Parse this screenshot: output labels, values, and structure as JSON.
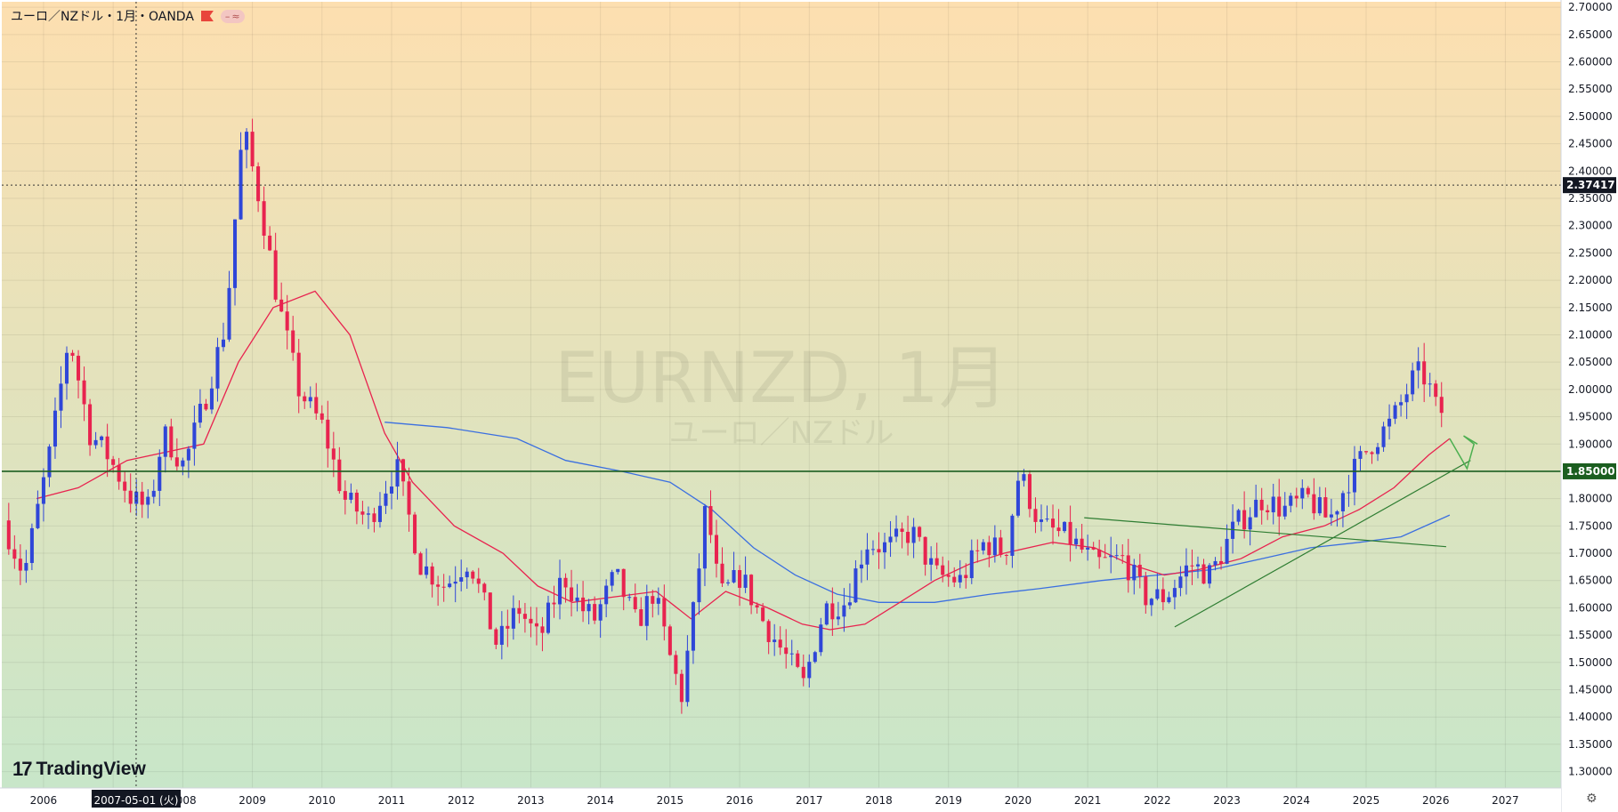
{
  "legend": {
    "title": "ユーロ／NZドル・1月・OANDA",
    "flag_icon": "flag-icon",
    "pill_minus": "–",
    "pill_wave": "≈"
  },
  "watermark": {
    "line1": "EURNZD, 1月",
    "line2": "ユーロ／NZドル"
  },
  "branding": {
    "mark": "17",
    "name": "TradingView"
  },
  "crosshair": {
    "date_label": "2007-05-01 (火)",
    "price_label": "2.37417"
  },
  "colors": {
    "bg_top": "#fddfb0",
    "bg_bottom": "#c8e6c9",
    "up": "#2f46d8",
    "down": "#e8234f",
    "ma_fast": "#e8234f",
    "ma_slow": "#3b6fe0",
    "trend": "#2e7d32",
    "hline": "#1b5e20",
    "arrow": "#4caf50"
  },
  "chart_data": {
    "type": "candlestick",
    "symbol": "EURNZD",
    "interval": "1月",
    "x_axis": {
      "ticks": [
        "2006",
        "2007",
        "2008",
        "2009",
        "2010",
        "2011",
        "2012",
        "2013",
        "2014",
        "2015",
        "2016",
        "2017",
        "2018",
        "2019",
        "2020",
        "2021",
        "2022",
        "2023",
        "2024",
        "2025",
        "2026",
        "2027"
      ],
      "range": [
        2005.4,
        2027.8
      ]
    },
    "y_axis": {
      "range": [
        1.27,
        2.71
      ],
      "ticks": [
        "1.30000",
        "1.35000",
        "1.40000",
        "1.45000",
        "1.50000",
        "1.55000",
        "1.60000",
        "1.65000",
        "1.70000",
        "1.75000",
        "1.80000",
        "1.85000",
        "1.90000",
        "1.95000",
        "2.00000",
        "2.05000",
        "2.10000",
        "2.15000",
        "2.20000",
        "2.25000",
        "2.30000",
        "2.35000",
        "2.40000",
        "2.45000",
        "2.50000",
        "2.55000",
        "2.60000",
        "2.65000",
        "2.70000"
      ]
    },
    "horizontal_line": {
      "price": 1.85,
      "label": "1.85000"
    },
    "crosshair_price": 2.37417,
    "anchors": [
      [
        2005.5,
        1.76
      ],
      [
        2005.8,
        1.66
      ],
      [
        2006.2,
        1.9
      ],
      [
        2006.45,
        2.1
      ],
      [
        2006.75,
        1.92
      ],
      [
        2007.0,
        1.88
      ],
      [
        2007.35,
        1.8
      ],
      [
        2007.6,
        1.78
      ],
      [
        2007.8,
        1.92
      ],
      [
        2008.1,
        1.86
      ],
      [
        2008.4,
        1.98
      ],
      [
        2008.7,
        2.12
      ],
      [
        2008.95,
        2.48
      ],
      [
        2009.2,
        2.34
      ],
      [
        2009.45,
        2.16
      ],
      [
        2009.75,
        2.0
      ],
      [
        2010.1,
        1.93
      ],
      [
        2010.4,
        1.8
      ],
      [
        2010.75,
        1.76
      ],
      [
        2011.15,
        1.86
      ],
      [
        2011.5,
        1.68
      ],
      [
        2011.85,
        1.64
      ],
      [
        2012.2,
        1.69
      ],
      [
        2012.6,
        1.53
      ],
      [
        2012.9,
        1.6
      ],
      [
        2013.2,
        1.54
      ],
      [
        2013.55,
        1.66
      ],
      [
        2013.8,
        1.6
      ],
      [
        2014.0,
        1.58
      ],
      [
        2014.3,
        1.66
      ],
      [
        2014.6,
        1.57
      ],
      [
        2014.85,
        1.63
      ],
      [
        2015.1,
        1.5
      ],
      [
        2015.25,
        1.44
      ],
      [
        2015.45,
        1.62
      ],
      [
        2015.6,
        1.79
      ],
      [
        2015.8,
        1.62
      ],
      [
        2016.1,
        1.66
      ],
      [
        2016.4,
        1.58
      ],
      [
        2016.7,
        1.52
      ],
      [
        2017.0,
        1.46
      ],
      [
        2017.3,
        1.6
      ],
      [
        2017.6,
        1.61
      ],
      [
        2017.9,
        1.72
      ],
      [
        2018.2,
        1.71
      ],
      [
        2018.55,
        1.74
      ],
      [
        2018.9,
        1.66
      ],
      [
        2019.25,
        1.65
      ],
      [
        2019.6,
        1.72
      ],
      [
        2019.9,
        1.7
      ],
      [
        2020.1,
        1.85
      ],
      [
        2020.4,
        1.75
      ],
      [
        2020.8,
        1.73
      ],
      [
        2021.2,
        1.68
      ],
      [
        2021.6,
        1.69
      ],
      [
        2021.9,
        1.62
      ],
      [
        2022.2,
        1.62
      ],
      [
        2022.55,
        1.68
      ],
      [
        2022.85,
        1.66
      ],
      [
        2023.2,
        1.75
      ],
      [
        2023.6,
        1.8
      ],
      [
        2023.9,
        1.78
      ],
      [
        2024.25,
        1.8
      ],
      [
        2024.55,
        1.76
      ],
      [
        2024.85,
        1.84
      ],
      [
        2025.15,
        1.9
      ],
      [
        2025.45,
        1.94
      ],
      [
        2025.8,
        2.03
      ],
      [
        2025.95,
        2.02
      ],
      [
        2026.1,
        1.96
      ]
    ],
    "ma_fast_anchors": [
      [
        2005.9,
        1.8
      ],
      [
        2006.5,
        1.82
      ],
      [
        2007.2,
        1.87
      ],
      [
        2008.3,
        1.9
      ],
      [
        2008.8,
        2.05
      ],
      [
        2009.3,
        2.15
      ],
      [
        2009.9,
        2.18
      ],
      [
        2010.4,
        2.1
      ],
      [
        2010.9,
        1.92
      ],
      [
        2011.3,
        1.83
      ],
      [
        2011.9,
        1.75
      ],
      [
        2012.6,
        1.7
      ],
      [
        2013.1,
        1.64
      ],
      [
        2013.6,
        1.61
      ],
      [
        2014.2,
        1.62
      ],
      [
        2014.8,
        1.63
      ],
      [
        2015.3,
        1.58
      ],
      [
        2015.8,
        1.63
      ],
      [
        2016.4,
        1.6
      ],
      [
        2016.9,
        1.57
      ],
      [
        2017.3,
        1.56
      ],
      [
        2017.8,
        1.57
      ],
      [
        2018.3,
        1.61
      ],
      [
        2018.8,
        1.65
      ],
      [
        2019.3,
        1.68
      ],
      [
        2019.8,
        1.7
      ],
      [
        2020.5,
        1.72
      ],
      [
        2021.1,
        1.71
      ],
      [
        2021.6,
        1.68
      ],
      [
        2022.1,
        1.66
      ],
      [
        2022.6,
        1.67
      ],
      [
        2023.2,
        1.69
      ],
      [
        2023.8,
        1.73
      ],
      [
        2024.4,
        1.75
      ],
      [
        2024.9,
        1.78
      ],
      [
        2025.4,
        1.82
      ],
      [
        2025.9,
        1.88
      ],
      [
        2026.2,
        1.91
      ]
    ],
    "ma_slow_anchors": [
      [
        2010.9,
        1.94
      ],
      [
        2011.8,
        1.93
      ],
      [
        2012.8,
        1.91
      ],
      [
        2013.5,
        1.87
      ],
      [
        2014.3,
        1.85
      ],
      [
        2015.0,
        1.83
      ],
      [
        2015.6,
        1.78
      ],
      [
        2016.2,
        1.71
      ],
      [
        2016.8,
        1.66
      ],
      [
        2017.4,
        1.625
      ],
      [
        2018.0,
        1.61
      ],
      [
        2018.8,
        1.61
      ],
      [
        2019.6,
        1.625
      ],
      [
        2020.3,
        1.635
      ],
      [
        2021.2,
        1.65
      ],
      [
        2022.0,
        1.66
      ],
      [
        2022.8,
        1.67
      ],
      [
        2023.5,
        1.69
      ],
      [
        2024.2,
        1.71
      ],
      [
        2024.9,
        1.72
      ],
      [
        2025.5,
        1.73
      ],
      [
        2026.2,
        1.77
      ]
    ],
    "trendlines": [
      {
        "from": [
          2022.25,
          1.565
        ],
        "to": [
          2026.5,
          1.87
        ]
      },
      {
        "from": [
          2020.95,
          1.765
        ],
        "to": [
          2026.15,
          1.712
        ]
      }
    ],
    "arrow_drawing": [
      [
        2026.2,
        1.91
      ],
      [
        2026.45,
        1.855
      ],
      [
        2026.55,
        1.9
      ],
      [
        2026.4,
        1.915
      ],
      [
        2026.6,
        1.9
      ]
    ]
  }
}
